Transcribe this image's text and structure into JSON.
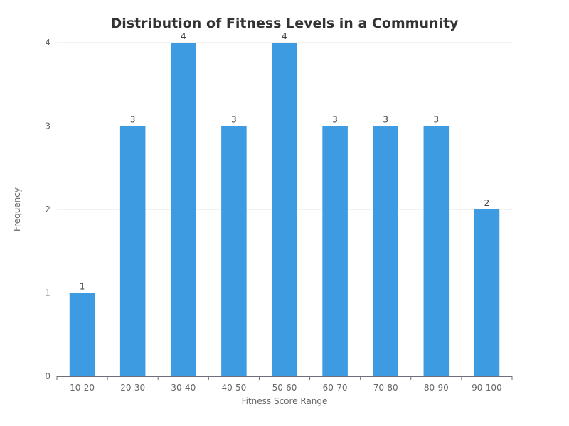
{
  "chart_data": {
    "type": "bar",
    "title": "Distribution of Fitness Levels in a Community",
    "xlabel": "Fitness Score Range",
    "ylabel": "Frequency",
    "categories": [
      "10-20",
      "20-30",
      "30-40",
      "40-50",
      "50-60",
      "60-70",
      "70-80",
      "80-90",
      "90-100"
    ],
    "values": [
      1,
      3,
      4,
      3,
      4,
      3,
      3,
      3,
      2
    ],
    "ylim": [
      0,
      4
    ],
    "yticks": [
      0,
      1,
      2,
      3,
      4
    ],
    "grid": true,
    "bar_color": "#3d9be1",
    "data_labels": true
  }
}
